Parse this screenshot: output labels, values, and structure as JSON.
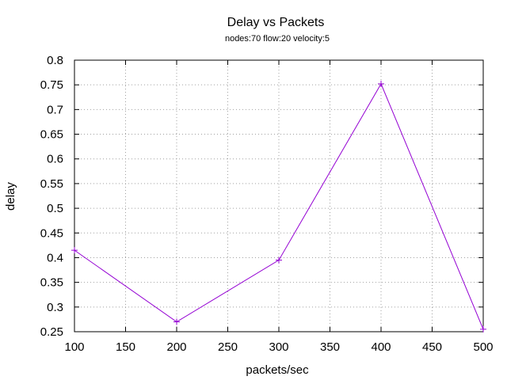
{
  "chart_data": {
    "type": "line",
    "title": "Delay vs Packets",
    "subtitle": "nodes:70  flow:20  velocity:5",
    "xlabel": "packets/sec",
    "ylabel": "delay",
    "x": [
      100,
      200,
      300,
      400,
      500
    ],
    "series": [
      {
        "values": [
          0.415,
          0.27,
          0.395,
          0.752,
          0.255
        ],
        "color": "#9400d3",
        "marker": "plus"
      }
    ],
    "xlim": [
      100,
      500
    ],
    "ylim": [
      0.25,
      0.8
    ],
    "xticks": [
      100,
      150,
      200,
      250,
      300,
      350,
      400,
      450,
      500
    ],
    "yticks": [
      0.25,
      0.3,
      0.35,
      0.4,
      0.45,
      0.5,
      0.55,
      0.6,
      0.65,
      0.7,
      0.75,
      0.8
    ],
    "xtick_labels": [
      "100",
      "150",
      "200",
      "250",
      "300",
      "350",
      "400",
      "450",
      "500"
    ],
    "ytick_labels": [
      "0.25",
      "0.3",
      "0.35",
      "0.4",
      "0.45",
      "0.5",
      "0.55",
      "0.6",
      "0.65",
      "0.7",
      "0.75",
      "0.8"
    ],
    "grid": true
  }
}
